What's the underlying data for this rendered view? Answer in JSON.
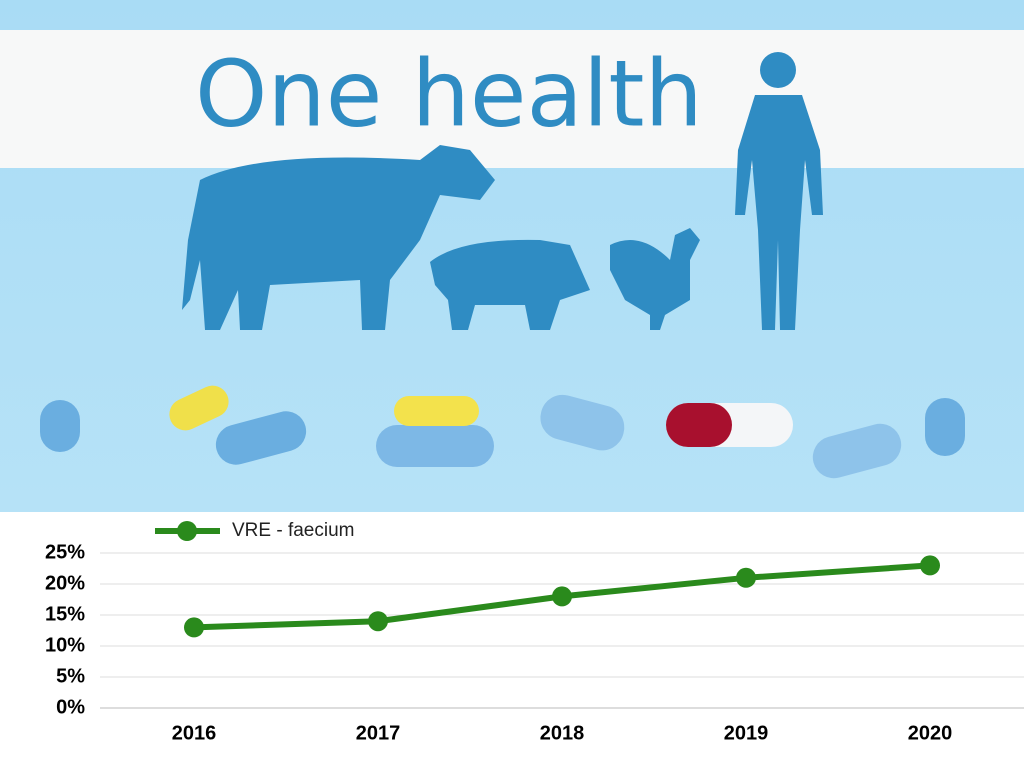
{
  "banner": {
    "title": "One health"
  },
  "chart_data": {
    "type": "line",
    "categories": [
      "2016",
      "2017",
      "2018",
      "2019",
      "2020"
    ],
    "series": [
      {
        "name": "VRE - faecium",
        "color": "#2a8a1c",
        "values": [
          13,
          14,
          18,
          21,
          23
        ]
      }
    ],
    "ylim": [
      0,
      25
    ],
    "yticks": [
      {
        "value": 0,
        "label": "0%"
      },
      {
        "value": 5,
        "label": "5%"
      },
      {
        "value": 10,
        "label": "10%"
      },
      {
        "value": 15,
        "label": "15%"
      },
      {
        "value": 20,
        "label": "20%"
      },
      {
        "value": 25,
        "label": "25%"
      }
    ],
    "grid": true,
    "legend": "top-left"
  }
}
